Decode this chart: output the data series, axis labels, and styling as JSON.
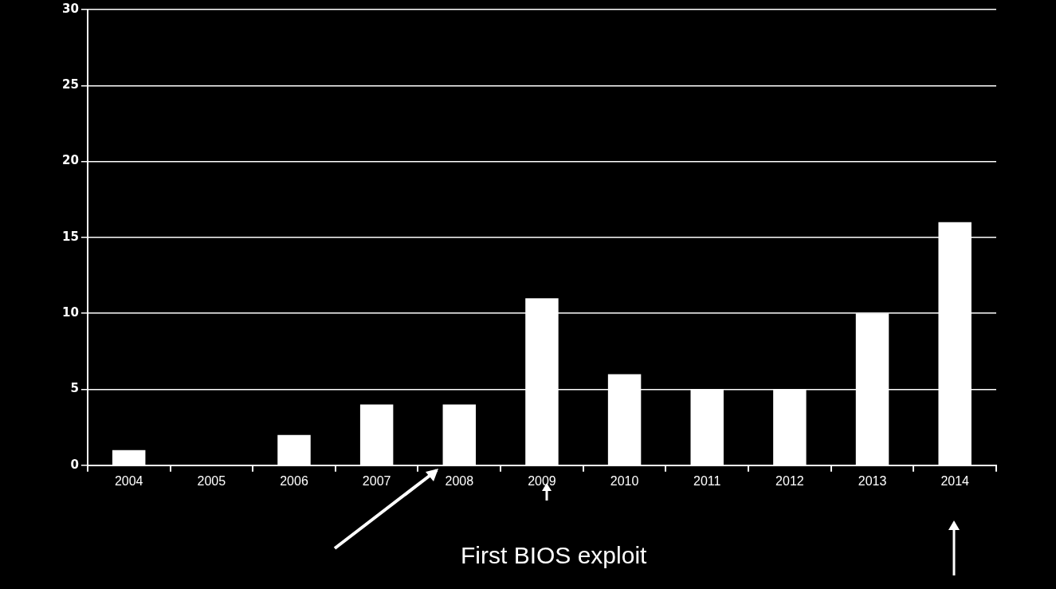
{
  "chart_data": {
    "type": "bar",
    "categories": [
      "2004",
      "2005",
      "2006",
      "2007",
      "2008",
      "2009",
      "2010",
      "2011",
      "2012",
      "2013",
      "2014"
    ],
    "values": [
      1,
      0,
      2,
      4,
      4,
      11,
      6,
      5,
      5,
      10,
      16
    ],
    "color": "#ffffff",
    "ylim": [
      0,
      30
    ],
    "yticks": [
      0,
      5,
      10,
      15,
      20,
      25,
      30
    ],
    "grid": "y",
    "legend": false,
    "annotations": [
      "First BIOS exploit"
    ]
  }
}
